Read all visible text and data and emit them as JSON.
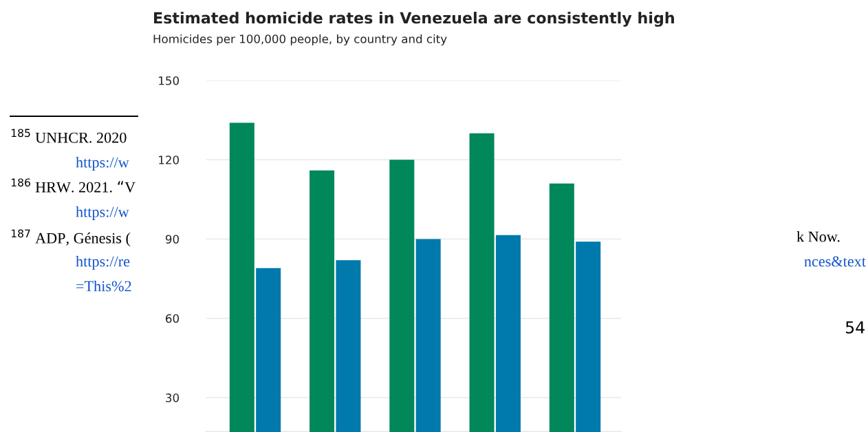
{
  "chart_data": {
    "type": "bar",
    "title": "Estimated homicide rates in Venezuela are consistently high",
    "subtitle": "Homicides per 100,000 people, by country and city",
    "categories": [
      null,
      null,
      null,
      null,
      null
    ],
    "series": [
      {
        "color": "#00875a",
        "values": [
          134,
          116,
          120,
          130,
          111
        ]
      },
      {
        "color": "#0079ad",
        "values": [
          79,
          82,
          90,
          91.5,
          89
        ]
      }
    ],
    "ylim": [
      17,
      150
    ],
    "yticks": [
      30,
      60,
      90,
      120,
      150
    ],
    "grid": "y",
    "legend": false,
    "tick_labels": "y",
    "annotations": [
      "$^{185}$ UNHCR. 2020",
      "https://w",
      "$^{186}$ HRW. 2021. “V",
      "https://w",
      "$^{187}$ ADP, Génesis (",
      "https://re",
      "=This%2",
      "k Now.",
      "nces&text",
      "54"
    ]
  }
}
